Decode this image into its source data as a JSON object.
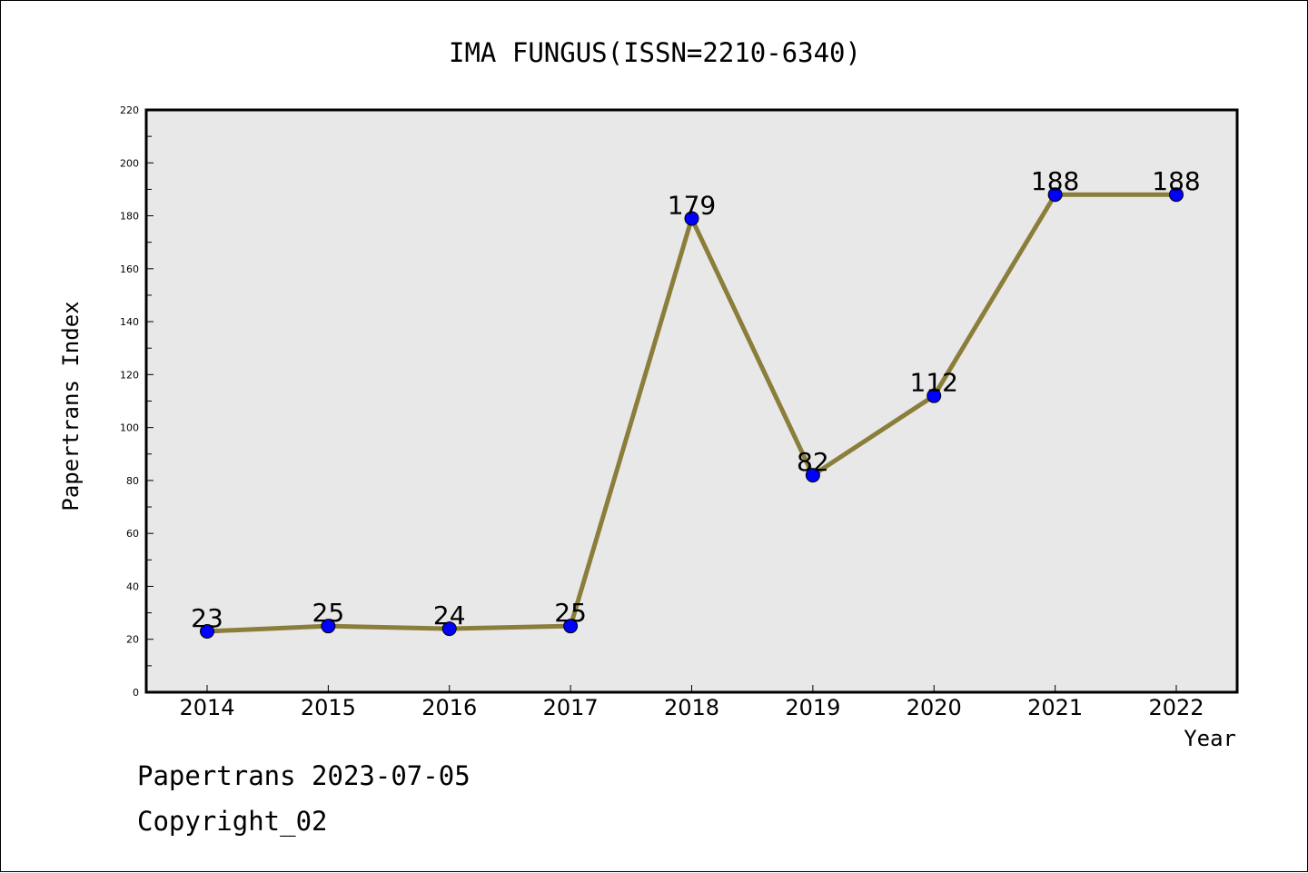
{
  "chart_data": {
    "type": "line",
    "title": "IMA FUNGUS(ISSN=2210-6340)",
    "xlabel": "Year",
    "ylabel": "Papertrans Index",
    "categories": [
      "2014",
      "2015",
      "2016",
      "2017",
      "2018",
      "2019",
      "2020",
      "2021",
      "2022"
    ],
    "values": [
      23,
      25,
      24,
      25,
      179,
      82,
      112,
      188,
      188
    ],
    "data_labels": [
      "23",
      "25",
      "24",
      "25",
      "179",
      "82",
      "112",
      "188",
      "188"
    ],
    "ylim": [
      0,
      220
    ],
    "y_ticks": [
      0,
      20,
      40,
      60,
      80,
      100,
      120,
      140,
      160,
      180,
      200,
      220
    ],
    "y_tick_labels": [
      "0",
      "20",
      "40",
      "60",
      "80",
      "100",
      "120",
      "140",
      "160",
      "180",
      "200",
      "220"
    ],
    "grid": false,
    "legend": "none",
    "line_color": "#8b7d3a",
    "marker_color": "#0000ff",
    "plot_background": "#e8e8e8"
  },
  "footer": {
    "date_text": "Papertrans 2023-07-05",
    "copyright_text": "Copyright_02"
  }
}
